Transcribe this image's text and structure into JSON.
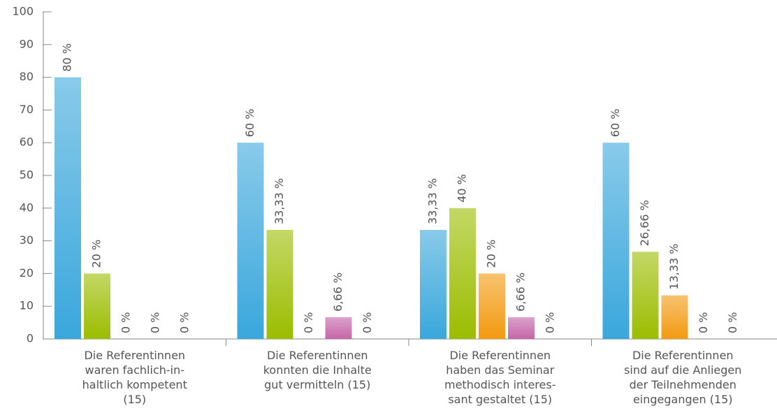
{
  "chart_data": {
    "type": "bar",
    "categories": [
      "Die Referentinnen\nwaren fachlich-in-\nhaltlich kompetent\n(15)",
      "Die Referentinnen\nkonnten die Inhalte\ngut vermitteln (15)",
      "Die Referentinnen\nhaben das Seminar\nmethodisch interes-\nsant gestaltet (15)",
      "Die Referentinnen\nsind auf die Anliegen\nder Teilnehmenden\neingegangen (15)"
    ],
    "series": [
      {
        "color": "#3aa7dc",
        "values": [
          80,
          60,
          33.33,
          60
        ],
        "value_labels": [
          "80 %",
          "60 %",
          "33,33 %",
          "60 %"
        ]
      },
      {
        "color": "#9bbd00",
        "values": [
          20,
          33.33,
          40,
          26.66
        ],
        "value_labels": [
          "20 %",
          "33,33 %",
          "40 %",
          "26,66 %"
        ]
      },
      {
        "color": "#f39a10",
        "values": [
          0,
          0,
          20,
          13.33
        ],
        "value_labels": [
          "0 %",
          "0 %",
          "20 %",
          "13,33 %"
        ]
      },
      {
        "color": "#c466a8",
        "values": [
          0,
          6.66,
          6.66,
          0
        ],
        "value_labels": [
          "0 %",
          "6,66 %",
          "6,66 %",
          "0 %"
        ]
      },
      {
        "color": "#999999",
        "values": [
          0,
          0,
          0,
          0
        ],
        "value_labels": [
          "0 %",
          "0 %",
          "0 %",
          "0 %"
        ]
      }
    ],
    "ylim": [
      0,
      100
    ],
    "yticks": [
      0,
      10,
      20,
      30,
      40,
      50,
      60,
      70,
      80,
      90,
      100
    ]
  }
}
